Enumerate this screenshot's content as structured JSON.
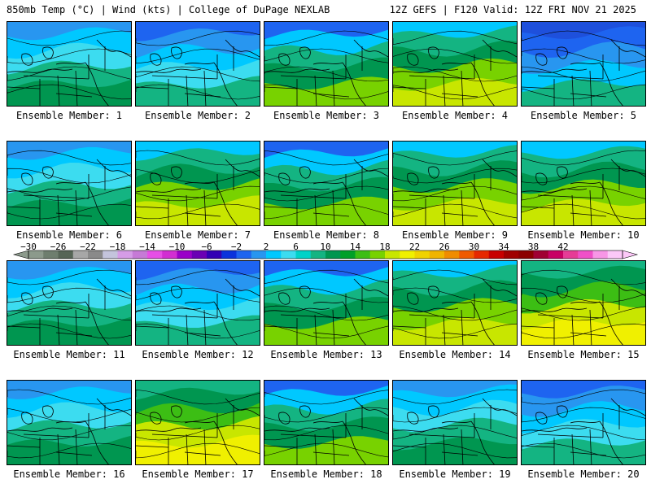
{
  "header": {
    "left": "850mb Temp (°C) | Wind (kts) | College of DuPage NEXLAB",
    "right": "12Z GEFS | F120 Valid: 12Z FRI NOV 21 2025"
  },
  "members": [
    {
      "label": "Ensemble Member: 1",
      "tone": "cool"
    },
    {
      "label": "Ensemble Member: 2",
      "tone": "cold"
    },
    {
      "label": "Ensemble Member: 3",
      "tone": "mixed"
    },
    {
      "label": "Ensemble Member: 4",
      "tone": "warm"
    },
    {
      "label": "Ensemble Member: 5",
      "tone": "coldest"
    },
    {
      "label": "Ensemble Member: 6",
      "tone": "cool"
    },
    {
      "label": "Ensemble Member: 7",
      "tone": "warm"
    },
    {
      "label": "Ensemble Member: 8",
      "tone": "mixed"
    },
    {
      "label": "Ensemble Member: 9",
      "tone": "warm"
    },
    {
      "label": "Ensemble Member: 10",
      "tone": "warm"
    },
    {
      "label": "Ensemble Member: 11",
      "tone": "cool"
    },
    {
      "label": "Ensemble Member: 12",
      "tone": "cold"
    },
    {
      "label": "Ensemble Member: 13",
      "tone": "mixed"
    },
    {
      "label": "Ensemble Member: 14",
      "tone": "warm"
    },
    {
      "label": "Ensemble Member: 15",
      "tone": "hot"
    },
    {
      "label": "Ensemble Member: 16",
      "tone": "cool"
    },
    {
      "label": "Ensemble Member: 17",
      "tone": "hot"
    },
    {
      "label": "Ensemble Member: 18",
      "tone": "mixed"
    },
    {
      "label": "Ensemble Member: 19",
      "tone": "cool"
    },
    {
      "label": "Ensemble Member: 20",
      "tone": "cold"
    }
  ],
  "colorbar": {
    "ticks": [
      "−30",
      "−26",
      "−22",
      "−18",
      "−14",
      "−10",
      "−6",
      "−2",
      "2",
      "6",
      "10",
      "14",
      "18",
      "22",
      "26",
      "30",
      "34",
      "38",
      "42"
    ],
    "colors": [
      "#8c9a8c",
      "#6e7e6e",
      "#566556",
      "#a7a7a7",
      "#8a8a8a",
      "#c4c4dc",
      "#d59ce6",
      "#c67ad6",
      "#e64ee6",
      "#d22ed2",
      "#9a00c8",
      "#6a00b4",
      "#3200b4",
      "#0a32dc",
      "#1e64f0",
      "#2896f0",
      "#00c8ff",
      "#3cdcf0",
      "#00d2c8",
      "#14b482",
      "#009650",
      "#00a028",
      "#3cbe14",
      "#78d200",
      "#c8e600",
      "#f0f000",
      "#f0d200",
      "#f0b400",
      "#f08c00",
      "#f05a00",
      "#e62800",
      "#c80000",
      "#a00000",
      "#8c0000",
      "#a00032",
      "#c80064",
      "#e63c96",
      "#f050c8",
      "#f896e6",
      "#fcc8f8"
    ]
  }
}
